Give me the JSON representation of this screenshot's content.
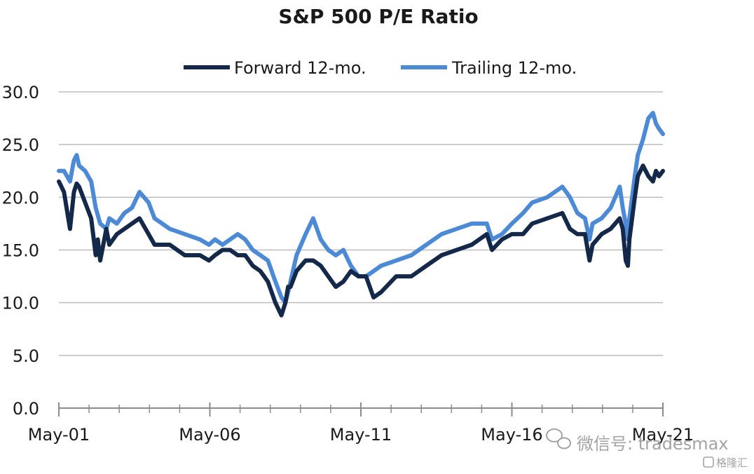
{
  "chart_data": {
    "type": "line",
    "title": "S&P 500 P/E Ratio",
    "xlabel": "",
    "ylabel": "",
    "ylim": [
      0,
      30
    ],
    "yticks": [
      "0.0",
      "5.0",
      "10.0",
      "15.0",
      "20.0",
      "25.0",
      "30.0"
    ],
    "xlim": [
      2001.33,
      2021.33
    ],
    "xticks": [
      {
        "label": "May-01",
        "x": 2001.33
      },
      {
        "label": "May-06",
        "x": 2006.33
      },
      {
        "label": "May-11",
        "x": 2011.33
      },
      {
        "label": "May-16",
        "x": 2016.33
      },
      {
        "label": "May-21",
        "x": 2021.33
      }
    ],
    "grid": "horizontal",
    "legend_position": "top",
    "series": [
      {
        "name": "Forward 12-mo.",
        "color": "#14284a",
        "x": [
          2001.33,
          2001.5,
          2001.7,
          2001.83,
          2001.92,
          2002.0,
          2002.2,
          2002.4,
          2002.55,
          2002.62,
          2002.7,
          2002.8,
          2002.9,
          2003.0,
          2003.25,
          2003.5,
          2003.75,
          2004.0,
          2004.3,
          2004.5,
          2004.75,
          2005.0,
          2005.5,
          2006.0,
          2006.3,
          2006.5,
          2006.75,
          2007.0,
          2007.25,
          2007.5,
          2007.75,
          2008.0,
          2008.25,
          2008.5,
          2008.7,
          2008.83,
          2008.92,
          2009.0,
          2009.2,
          2009.5,
          2009.75,
          2010.0,
          2010.25,
          2010.5,
          2010.75,
          2011.0,
          2011.25,
          2011.5,
          2011.75,
          2012.0,
          2012.5,
          2013.0,
          2013.5,
          2014.0,
          2014.5,
          2015.0,
          2015.5,
          2015.67,
          2016.0,
          2016.33,
          2016.7,
          2017.0,
          2017.5,
          2018.0,
          2018.25,
          2018.5,
          2018.75,
          2018.9,
          2019.0,
          2019.3,
          2019.6,
          2019.9,
          2020.0,
          2020.1,
          2020.17,
          2020.22,
          2020.4,
          2020.5,
          2020.67,
          2020.85,
          2021.0,
          2021.1,
          2021.2,
          2021.33
        ],
        "values": [
          21.5,
          20.5,
          17,
          20.5,
          21.3,
          21,
          19.5,
          18,
          14.5,
          16,
          14,
          15.5,
          17,
          15.5,
          16.5,
          17,
          17.5,
          18,
          16.5,
          15.5,
          15.5,
          15.5,
          14.5,
          14.5,
          14,
          14.5,
          15,
          15,
          14.5,
          14.5,
          13.5,
          13,
          12,
          10,
          8.8,
          10,
          11.5,
          11.5,
          13,
          14,
          14,
          13.5,
          12.5,
          11.5,
          12,
          13,
          12.5,
          12.5,
          10.5,
          11,
          12.5,
          12.5,
          13.5,
          14.5,
          15,
          15.5,
          16.5,
          15,
          16,
          16.5,
          16.5,
          17.5,
          18,
          18.5,
          17,
          16.5,
          16.5,
          14,
          15.5,
          16.5,
          17,
          18,
          17,
          14,
          13.5,
          16,
          20,
          22,
          23,
          22,
          21.5,
          22.5,
          22,
          22.5
        ]
      },
      {
        "name": "Trailing 12-mo.",
        "color": "#4d8ad6",
        "x": [
          2001.33,
          2001.5,
          2001.7,
          2001.83,
          2001.92,
          2002.0,
          2002.2,
          2002.4,
          2002.55,
          2002.7,
          2002.9,
          2003.0,
          2003.25,
          2003.5,
          2003.75,
          2004.0,
          2004.3,
          2004.5,
          2004.75,
          2005.0,
          2005.5,
          2006.0,
          2006.3,
          2006.5,
          2006.75,
          2007.0,
          2007.25,
          2007.5,
          2007.75,
          2008.0,
          2008.25,
          2008.5,
          2008.7,
          2008.83,
          2008.92,
          2009.0,
          2009.2,
          2009.5,
          2009.75,
          2010.0,
          2010.25,
          2010.5,
          2010.75,
          2011.0,
          2011.25,
          2011.5,
          2011.75,
          2012.0,
          2012.5,
          2013.0,
          2013.5,
          2014.0,
          2014.5,
          2015.0,
          2015.5,
          2015.67,
          2016.0,
          2016.33,
          2016.7,
          2017.0,
          2017.5,
          2018.0,
          2018.25,
          2018.5,
          2018.75,
          2018.9,
          2019.0,
          2019.3,
          2019.6,
          2019.9,
          2020.0,
          2020.1,
          2020.17,
          2020.22,
          2020.4,
          2020.5,
          2020.67,
          2020.85,
          2021.0,
          2021.1,
          2021.2,
          2021.33
        ],
        "values": [
          22.5,
          22.5,
          21.5,
          23.5,
          24,
          23,
          22.5,
          21.5,
          19,
          17.5,
          17,
          18,
          17.5,
          18.5,
          19,
          20.5,
          19.5,
          18,
          17.5,
          17,
          16.5,
          16,
          15.5,
          16,
          15.5,
          16,
          16.5,
          16,
          15,
          14.5,
          14,
          12,
          10.5,
          10,
          11,
          12,
          14.5,
          16.5,
          18,
          16,
          15,
          14.5,
          15,
          13.5,
          12.5,
          12.5,
          13,
          13.5,
          14,
          14.5,
          15.5,
          16.5,
          17,
          17.5,
          17.5,
          16,
          16.5,
          17.5,
          18.5,
          19.5,
          20,
          21,
          20,
          18.5,
          18,
          16,
          17.5,
          18,
          19,
          21,
          19,
          17.5,
          16,
          18,
          22,
          24,
          25.5,
          27.5,
          28,
          27,
          26.5,
          26
        ]
      }
    ]
  },
  "watermark": {
    "primary": "微信号: tradesmax",
    "secondary": "格隆汇"
  }
}
